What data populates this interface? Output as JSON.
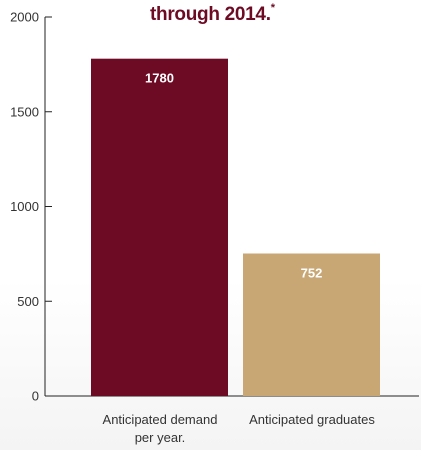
{
  "chart_data": {
    "type": "bar",
    "title": "through 2014.",
    "title_mark": "*",
    "categories": [
      "Anticipated demand per year.",
      "Anticipated graduates"
    ],
    "category_lines": [
      [
        "Anticipated demand",
        "per year."
      ],
      [
        "Anticipated graduates"
      ]
    ],
    "values": [
      1780,
      752
    ],
    "value_labels": [
      "1780",
      "752"
    ],
    "bar_colors": [
      "#6d0b25",
      "#c8a774"
    ],
    "label_color": "#ffffff",
    "xlabel": "",
    "ylabel": "",
    "ylim": [
      0,
      2000
    ],
    "yticks": [
      0,
      500,
      1000,
      1500,
      2000
    ],
    "ytick_labels": [
      "0",
      "500",
      "1000",
      "1500",
      "2000"
    ],
    "grid": false,
    "legend": "none"
  }
}
